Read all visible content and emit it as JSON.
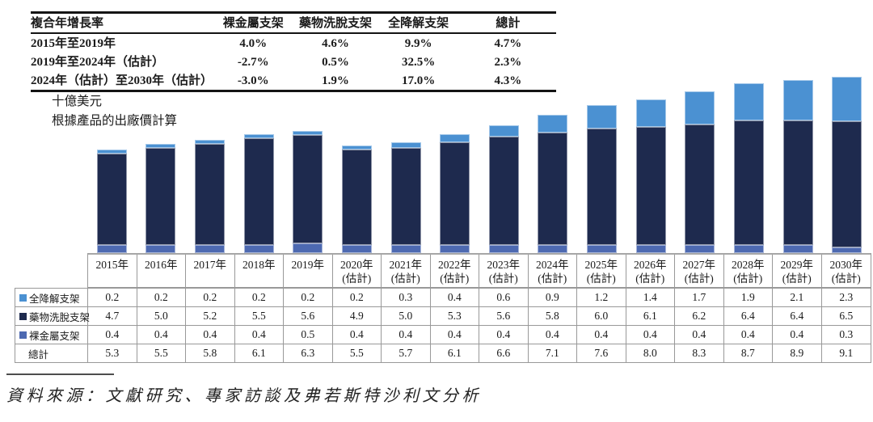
{
  "cagr_table": {
    "header_label": "複合年增長率",
    "header_cols": [
      "裸金屬支架",
      "藥物洗脫支架",
      "全降解支架",
      "總計"
    ],
    "rows": [
      {
        "label": "2015年至2019年",
        "values": [
          "4.0%",
          "4.6%",
          "9.9%",
          "4.7%"
        ]
      },
      {
        "label": "2019年至2024年（估計）",
        "values": [
          "-2.7%",
          "0.5%",
          "32.5%",
          "2.3%"
        ]
      },
      {
        "label": "2024年（估計）至2030年（估計）",
        "values": [
          "-3.0%",
          "1.9%",
          "17.0%",
          "4.3%"
        ]
      }
    ]
  },
  "chart_data": {
    "type": "bar",
    "stacked": true,
    "unit_label": "十億美元",
    "basis_note": "根據產品的出廠價計算",
    "axes_visible": false,
    "grid": false,
    "ylim": [
      0,
      9.5
    ],
    "legend_position": "table-left",
    "categories": [
      {
        "year": "2015年",
        "note": ""
      },
      {
        "year": "2016年",
        "note": ""
      },
      {
        "year": "2017年",
        "note": ""
      },
      {
        "year": "2018年",
        "note": ""
      },
      {
        "year": "2019年",
        "note": ""
      },
      {
        "year": "2020年",
        "note": "(估計)"
      },
      {
        "year": "2021年",
        "note": "(估計)"
      },
      {
        "year": "2022年",
        "note": "(估計)"
      },
      {
        "year": "2023年",
        "note": "(估計)"
      },
      {
        "year": "2024年",
        "note": "(估計)"
      },
      {
        "year": "2025年",
        "note": "(估計)"
      },
      {
        "year": "2026年",
        "note": "(估計)"
      },
      {
        "year": "2027年",
        "note": "(估計)"
      },
      {
        "year": "2028年",
        "note": "(估計)"
      },
      {
        "year": "2029年",
        "note": "(估計)"
      },
      {
        "year": "2030年",
        "note": "(估計)"
      }
    ],
    "series": [
      {
        "name": "全降解支架",
        "color": "#4b91d2",
        "values": [
          0.2,
          0.2,
          0.2,
          0.2,
          0.2,
          0.2,
          0.3,
          0.4,
          0.6,
          0.9,
          1.2,
          1.4,
          1.7,
          1.9,
          2.1,
          2.3
        ]
      },
      {
        "name": "藥物洗脫支架",
        "color": "#1e2a4e",
        "values": [
          4.7,
          5.0,
          5.2,
          5.5,
          5.6,
          4.9,
          5.0,
          5.3,
          5.6,
          5.8,
          6.0,
          6.1,
          6.2,
          6.4,
          6.4,
          6.5
        ]
      },
      {
        "name": "裸金屬支架",
        "color": "#4d69b1",
        "values": [
          0.4,
          0.4,
          0.4,
          0.4,
          0.5,
          0.4,
          0.4,
          0.4,
          0.4,
          0.4,
          0.4,
          0.4,
          0.4,
          0.4,
          0.4,
          0.3
        ]
      }
    ],
    "totals": {
      "label": "總計",
      "values": [
        5.3,
        5.5,
        5.8,
        6.1,
        6.3,
        5.5,
        5.7,
        6.1,
        6.6,
        7.1,
        7.6,
        8.0,
        8.3,
        8.7,
        8.9,
        9.1
      ]
    }
  },
  "source": {
    "text": "資料來源：文獻研究、專家訪談及弗若斯特沙利文分析"
  }
}
